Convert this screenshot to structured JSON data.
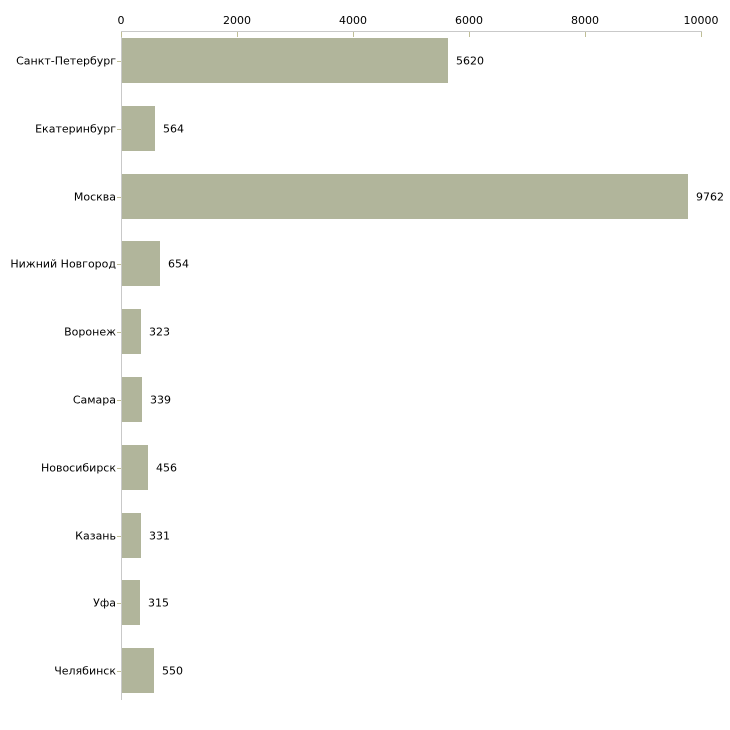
{
  "chart_data": {
    "type": "bar",
    "orientation": "horizontal",
    "title": "",
    "xlabel": "",
    "ylabel": "",
    "categories": [
      "Санкт-Петербург",
      "Екатеринбург",
      "Москва",
      "Нижний Новгород",
      "Воронеж",
      "Самара",
      "Новосибирск",
      "Казань",
      "Уфа",
      "Челябинск"
    ],
    "values": [
      5620,
      564,
      9762,
      654,
      323,
      339,
      456,
      331,
      315,
      550
    ],
    "value_labels": [
      "5620",
      "564",
      "9762",
      "654",
      "323",
      "339",
      "456",
      "331",
      "315",
      "550"
    ],
    "x_ticks": [
      0,
      2000,
      4000,
      6000,
      8000,
      10000
    ],
    "x_tick_labels": [
      "0",
      "2000",
      "4000",
      "6000",
      "8000",
      "10000"
    ],
    "xlim": [
      0,
      10000
    ],
    "grid": false,
    "legend": false,
    "axis_position": "top-left",
    "bar_color": "#b1b59b",
    "axis_line_color": "#c9c9c9",
    "tick_mark_color": "#bfbe96",
    "text_color": "#000000"
  }
}
